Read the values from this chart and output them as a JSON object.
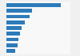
{
  "values": [
    89,
    42,
    38,
    30,
    25,
    22,
    20,
    18,
    14
  ],
  "bar_color": "#2d7bba",
  "background_color": "#f0f0f0",
  "plot_bg_color": "#f8f8f8",
  "xlim": [
    0,
    105
  ],
  "bar_height": 0.68,
  "grid_color": "#d0d0d0"
}
